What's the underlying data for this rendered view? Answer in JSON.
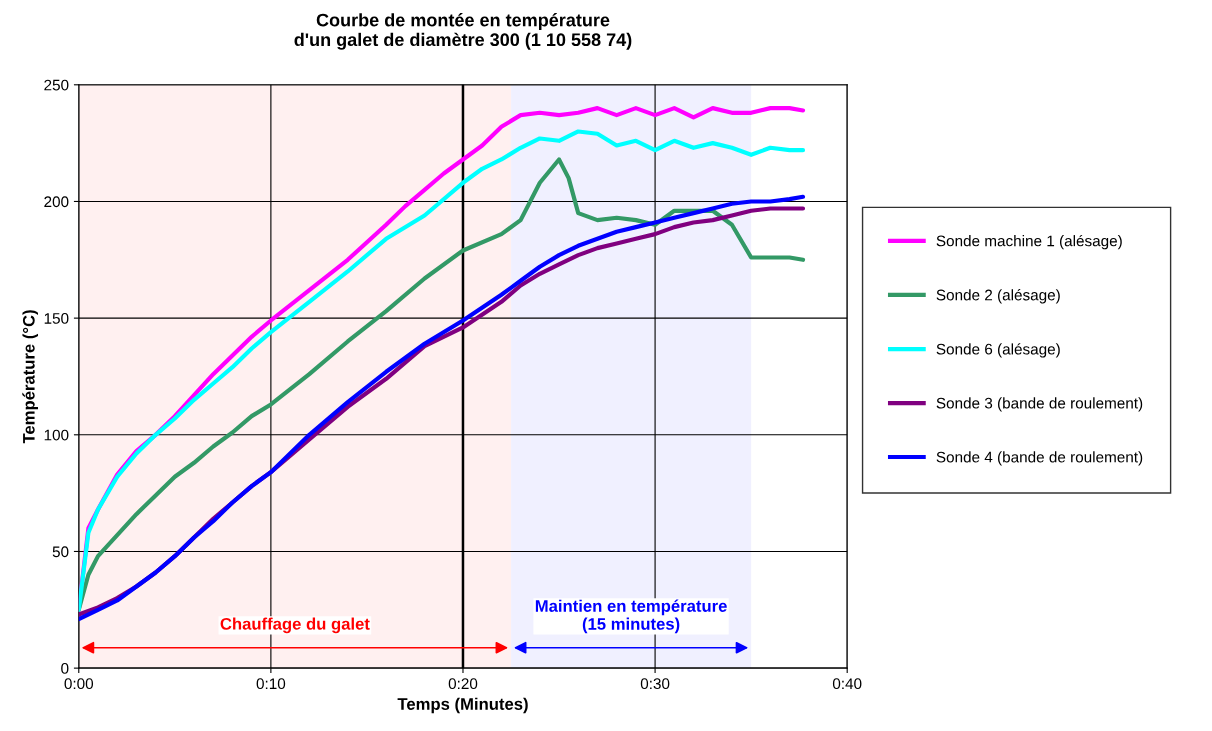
{
  "chart_data": {
    "type": "line",
    "title": "Courbe de montée en température\nd'un galet de diamètre 300 (1 10 558 74)",
    "xlabel": "Temps (Minutes)",
    "ylabel": "Température (°C)",
    "xlim": [
      0,
      40
    ],
    "xticks": [
      {
        "value": 0,
        "label": "0:00"
      },
      {
        "value": 10,
        "label": "0:10"
      },
      {
        "value": 20,
        "label": "0:20"
      },
      {
        "value": 30,
        "label": "0:30"
      },
      {
        "value": 40,
        "label": "0:40"
      }
    ],
    "ylim": [
      0,
      250
    ],
    "yticks": [
      0,
      50,
      100,
      150,
      200,
      250
    ],
    "grid": true,
    "legend": "right",
    "marker": "none",
    "line_style": "solid",
    "series": [
      {
        "name": "Sonde machine 1 (alésage)",
        "color": "#ff00ff",
        "x": [
          0,
          0.5,
          1,
          2,
          3,
          4,
          5,
          6,
          7,
          8,
          9,
          10,
          12,
          14,
          16,
          17,
          18,
          19,
          20,
          21,
          22,
          23,
          24,
          25,
          26,
          27,
          28,
          29,
          30,
          31,
          32,
          33,
          34,
          35,
          36,
          37,
          37.7
        ],
        "values": [
          25,
          60,
          68,
          83,
          93,
          100,
          108,
          117,
          126,
          134,
          142,
          149,
          162,
          175,
          190,
          198,
          205,
          212,
          218,
          224,
          232,
          237,
          238,
          237,
          238,
          240,
          237,
          240,
          237,
          240,
          236,
          240,
          238,
          238,
          240,
          240,
          239
        ]
      },
      {
        "name": "Sonde 2 (alésage)",
        "color": "#339966",
        "x": [
          0,
          0.5,
          1,
          2,
          3,
          4,
          5,
          6,
          7,
          8,
          9,
          10,
          12,
          14,
          16,
          18,
          20,
          22,
          23,
          24,
          25,
          25.5,
          26,
          27,
          28,
          29,
          30,
          31,
          32,
          33,
          34,
          35,
          36,
          37,
          37.7
        ],
        "values": [
          25,
          40,
          48,
          57,
          66,
          74,
          82,
          88,
          95,
          101,
          108,
          113,
          126,
          140,
          153,
          167,
          179,
          186,
          192,
          208,
          218,
          210,
          195,
          192,
          193,
          192,
          190,
          196,
          196,
          196,
          190,
          176,
          176,
          176,
          175
        ]
      },
      {
        "name": "Sonde 6 (alésage)",
        "color": "#00ffff",
        "x": [
          0,
          0.5,
          1,
          2,
          3,
          4,
          5,
          6,
          7,
          8,
          9,
          10,
          12,
          14,
          16,
          18,
          20,
          21,
          22,
          23,
          24,
          25,
          26,
          27,
          28,
          29,
          30,
          31,
          32,
          33,
          34,
          35,
          36,
          37,
          37.7
        ],
        "values": [
          25,
          58,
          68,
          82,
          92,
          100,
          107,
          115,
          122,
          129,
          137,
          144,
          157,
          170,
          184,
          194,
          208,
          214,
          218,
          223,
          227,
          226,
          230,
          229,
          224,
          226,
          222,
          226,
          223,
          225,
          223,
          220,
          223,
          222,
          222
        ]
      },
      {
        "name": "Sonde 3 (bande de roulement)",
        "color": "#800080",
        "x": [
          0,
          1,
          2,
          3,
          4,
          5,
          6,
          7,
          8,
          9,
          10,
          12,
          14,
          16,
          18,
          20,
          22,
          23,
          24,
          25,
          26,
          27,
          28,
          29,
          30,
          31,
          32,
          33,
          34,
          35,
          36,
          37,
          37.7
        ],
        "values": [
          23,
          26,
          30,
          35,
          41,
          48,
          56,
          64,
          71,
          78,
          84,
          98,
          112,
          124,
          138,
          146,
          157,
          164,
          169,
          173,
          177,
          180,
          182,
          184,
          186,
          189,
          191,
          192,
          194,
          196,
          197,
          197,
          197
        ]
      },
      {
        "name": "Sonde 4 (bande de roulement)",
        "color": "#0000ff",
        "x": [
          0,
          1,
          2,
          3,
          4,
          5,
          6,
          7,
          8,
          9,
          10,
          12,
          14,
          16,
          18,
          20,
          22,
          23,
          24,
          25,
          26,
          27,
          28,
          29,
          30,
          31,
          32,
          33,
          34,
          35,
          36,
          37,
          37.7
        ],
        "values": [
          21,
          25,
          29,
          35,
          41,
          48,
          56,
          63,
          71,
          78,
          84,
          100,
          114,
          127,
          139,
          149,
          160,
          166,
          172,
          177,
          181,
          184,
          187,
          189,
          191,
          193,
          195,
          197,
          199,
          200,
          200,
          201,
          202
        ]
      }
    ],
    "ref_lines": [
      {
        "axis": "x",
        "value": 20,
        "color": "#000000"
      }
    ],
    "bands": [
      {
        "axis": "x",
        "from": 0,
        "to": 22.5,
        "label": "Chauffage du galet",
        "color": "#ff0000"
      },
      {
        "axis": "x",
        "from": 22.5,
        "to": 35,
        "label": "Maintien en température\n(15 minutes)",
        "color": "#0000ff"
      }
    ]
  }
}
